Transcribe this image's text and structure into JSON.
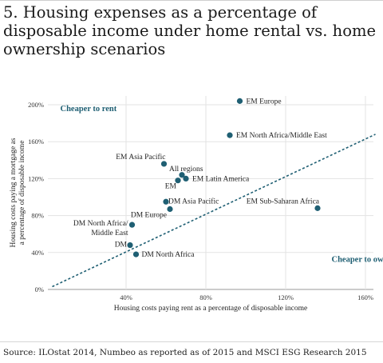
{
  "title": "5. Housing expenses as a percentage of disposable income under home rental vs. home ownership scenarios",
  "source": "Source: ILOstat 2014, Numbeo as reported as of 2015 and MSCI ESG Research 2015",
  "colors": {
    "point": "#1f5f73",
    "line": "#1f5f73",
    "grid": "#e3e3e3"
  },
  "chart_data": {
    "type": "scatter",
    "xlabel": "Housing costs paying rent as a percentage of disposable income",
    "ylabel": "Housing costs paying a mortgage as a percentage of disposable income",
    "xlim": [
      0,
      165
    ],
    "ylim": [
      0,
      210
    ],
    "xticks": [
      40,
      80,
      120,
      160
    ],
    "xtick_labels": [
      "40%",
      "80%",
      "120%",
      "160%"
    ],
    "yticks": [
      0,
      40,
      80,
      120,
      160,
      200
    ],
    "ytick_labels": [
      "0%",
      "40%",
      "80%",
      "120%",
      "160%",
      "200%"
    ],
    "grid": "horizontal and vertical",
    "reference_line": {
      "type": "dashed",
      "x": [
        3,
        165
      ],
      "y": [
        3,
        168
      ]
    },
    "annotations": [
      {
        "text": "Cheaper to rent",
        "x": 7,
        "y": 193
      },
      {
        "text": "Cheaper to own",
        "x": 143,
        "y": 30
      }
    ],
    "points": [
      {
        "label": "EM Europe",
        "x": 97,
        "y": 204
      },
      {
        "label": "EM North Africa/Middle East",
        "x": 92,
        "y": 167
      },
      {
        "label": "EM Asia Pacific",
        "x": 59,
        "y": 136
      },
      {
        "label": "All regions",
        "x": 68,
        "y": 124
      },
      {
        "label": "EM Latin America",
        "x": 70,
        "y": 120
      },
      {
        "label": "EM",
        "x": 66,
        "y": 118
      },
      {
        "label": "DM Asia Pacific",
        "x": 60,
        "y": 95
      },
      {
        "label": "DM Europe",
        "x": 62,
        "y": 87
      },
      {
        "label": "EM Sub-Saharan Africa",
        "x": 136,
        "y": 88
      },
      {
        "label": "DM North Africa/\nMiddle East",
        "x": 43,
        "y": 70
      },
      {
        "label": "DM",
        "x": 42,
        "y": 48
      },
      {
        "label": "DM North Africa",
        "x": 45,
        "y": 38
      }
    ]
  }
}
